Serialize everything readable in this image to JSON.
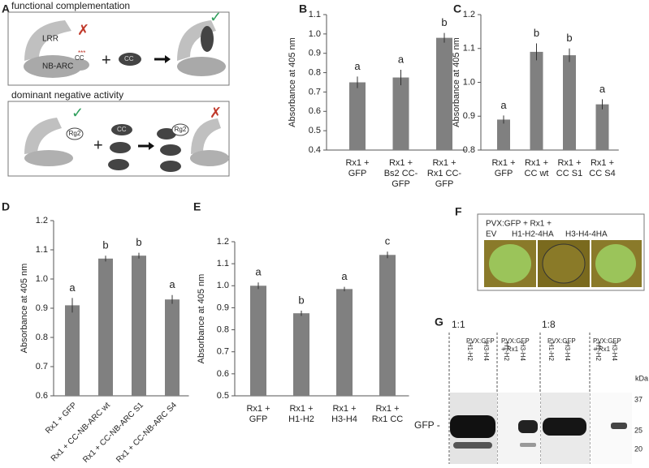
{
  "chart_data": [
    {
      "type": "bar",
      "panel": "B",
      "y_label": "Absorbance at 405 nm",
      "categories": [
        [
          "Rx1 +",
          "GFP"
        ],
        [
          "Rx1 +",
          "Bs2 CC-",
          "GFP"
        ],
        [
          "Rx1 +",
          "Rx1 CC-",
          "GFP"
        ]
      ],
      "values": [
        0.75,
        0.775,
        0.98
      ],
      "errors": [
        0.03,
        0.04,
        0.025
      ],
      "annotations": [
        "a",
        "a",
        "b"
      ],
      "color": "#808080",
      "ylim": [
        0.4,
        1.1
      ],
      "yticks": [
        0.4,
        0.5,
        0.6,
        0.7,
        0.8,
        0.9,
        {
          "value": 1,
          "label": "1.0"
        },
        1.1
      ]
    },
    {
      "type": "bar",
      "panel": "C",
      "y_label": "Absorbance at 405 nm",
      "categories": [
        [
          "Rx1 +",
          "GFP"
        ],
        [
          "Rx1 +",
          "CC wt"
        ],
        [
          "Rx1 +",
          "CC S1"
        ],
        [
          "Rx1 +",
          "CC S4"
        ]
      ],
      "values": [
        0.89,
        1.09,
        1.08,
        0.935
      ],
      "errors": [
        0.012,
        0.025,
        0.02,
        0.015
      ],
      "annotations": [
        "a",
        "b",
        "b",
        "a"
      ],
      "color": "#808080",
      "ylim": [
        0.8,
        1.2
      ],
      "yticks": [
        0.8,
        0.9,
        {
          "value": 1,
          "label": "1.0"
        },
        1.1,
        1.2
      ]
    },
    {
      "type": "bar",
      "panel": "D",
      "y_label": "Absorbance at 405 nm",
      "categories": [
        "Rx1 + GFP",
        "Rx1 + CC-NB-ARC wt",
        "Rx1 + CC-NB-ARC S1",
        "Rx1 + CC-NB-ARC S4"
      ],
      "values": [
        0.91,
        1.07,
        1.08,
        0.93
      ],
      "errors": [
        0.025,
        0.01,
        0.01,
        0.015
      ],
      "annotations": [
        "a",
        "b",
        "b",
        "a"
      ],
      "color": "#808080",
      "ylim": [
        0.6,
        1.2
      ],
      "yticks": [
        0.6,
        0.7,
        0.8,
        0.9,
        {
          "value": 1,
          "label": "1.0"
        },
        1.1,
        1.2
      ]
    },
    {
      "type": "bar",
      "panel": "E",
      "y_label": "Absorbance at 405 nm",
      "categories": [
        [
          "Rx1 +",
          "GFP"
        ],
        [
          "Rx1 +",
          "H1-H2"
        ],
        [
          "Rx1 +",
          "H3-H4"
        ],
        [
          "Rx1 +",
          "Rx1 CC"
        ]
      ],
      "values": [
        1.0,
        0.875,
        0.985,
        1.14
      ],
      "errors": [
        0.015,
        0.012,
        0.01,
        0.015
      ],
      "annotations": [
        "a",
        "b",
        "a",
        "c"
      ],
      "color": "#808080",
      "ylim": [
        0.5,
        1.2
      ],
      "yticks": [
        0.5,
        0.6,
        0.7,
        0.8,
        0.9,
        {
          "value": 1,
          "label": "1.0"
        },
        1.1,
        1.2
      ]
    }
  ],
  "panel_a": {
    "panel": "A",
    "top_title": "functional complementation",
    "bottom_title": "dominant negative activity",
    "lrr": "LRR",
    "nbarc": "NB-ARC",
    "cc": "CC",
    "stars": "***",
    "rg2": "Rg2"
  },
  "panel_f": {
    "panel": "F",
    "title": "PVX:GFP + Rx1 +",
    "lanes": [
      "EV",
      "H1-H2-4HA",
      "H3-H4-4HA"
    ]
  },
  "panel_g": {
    "panel": "G",
    "dilutions": [
      "1:1",
      "1:8"
    ],
    "groups": [
      [
        "PVX:GFP"
      ],
      [
        "PVX:GFP",
        "+ Rx1"
      ]
    ],
    "lanes": [
      "H1-H2",
      "H3-H4"
    ],
    "kda": "kDa",
    "markers": [
      "37",
      "25",
      "20"
    ],
    "band": "GFP -"
  }
}
